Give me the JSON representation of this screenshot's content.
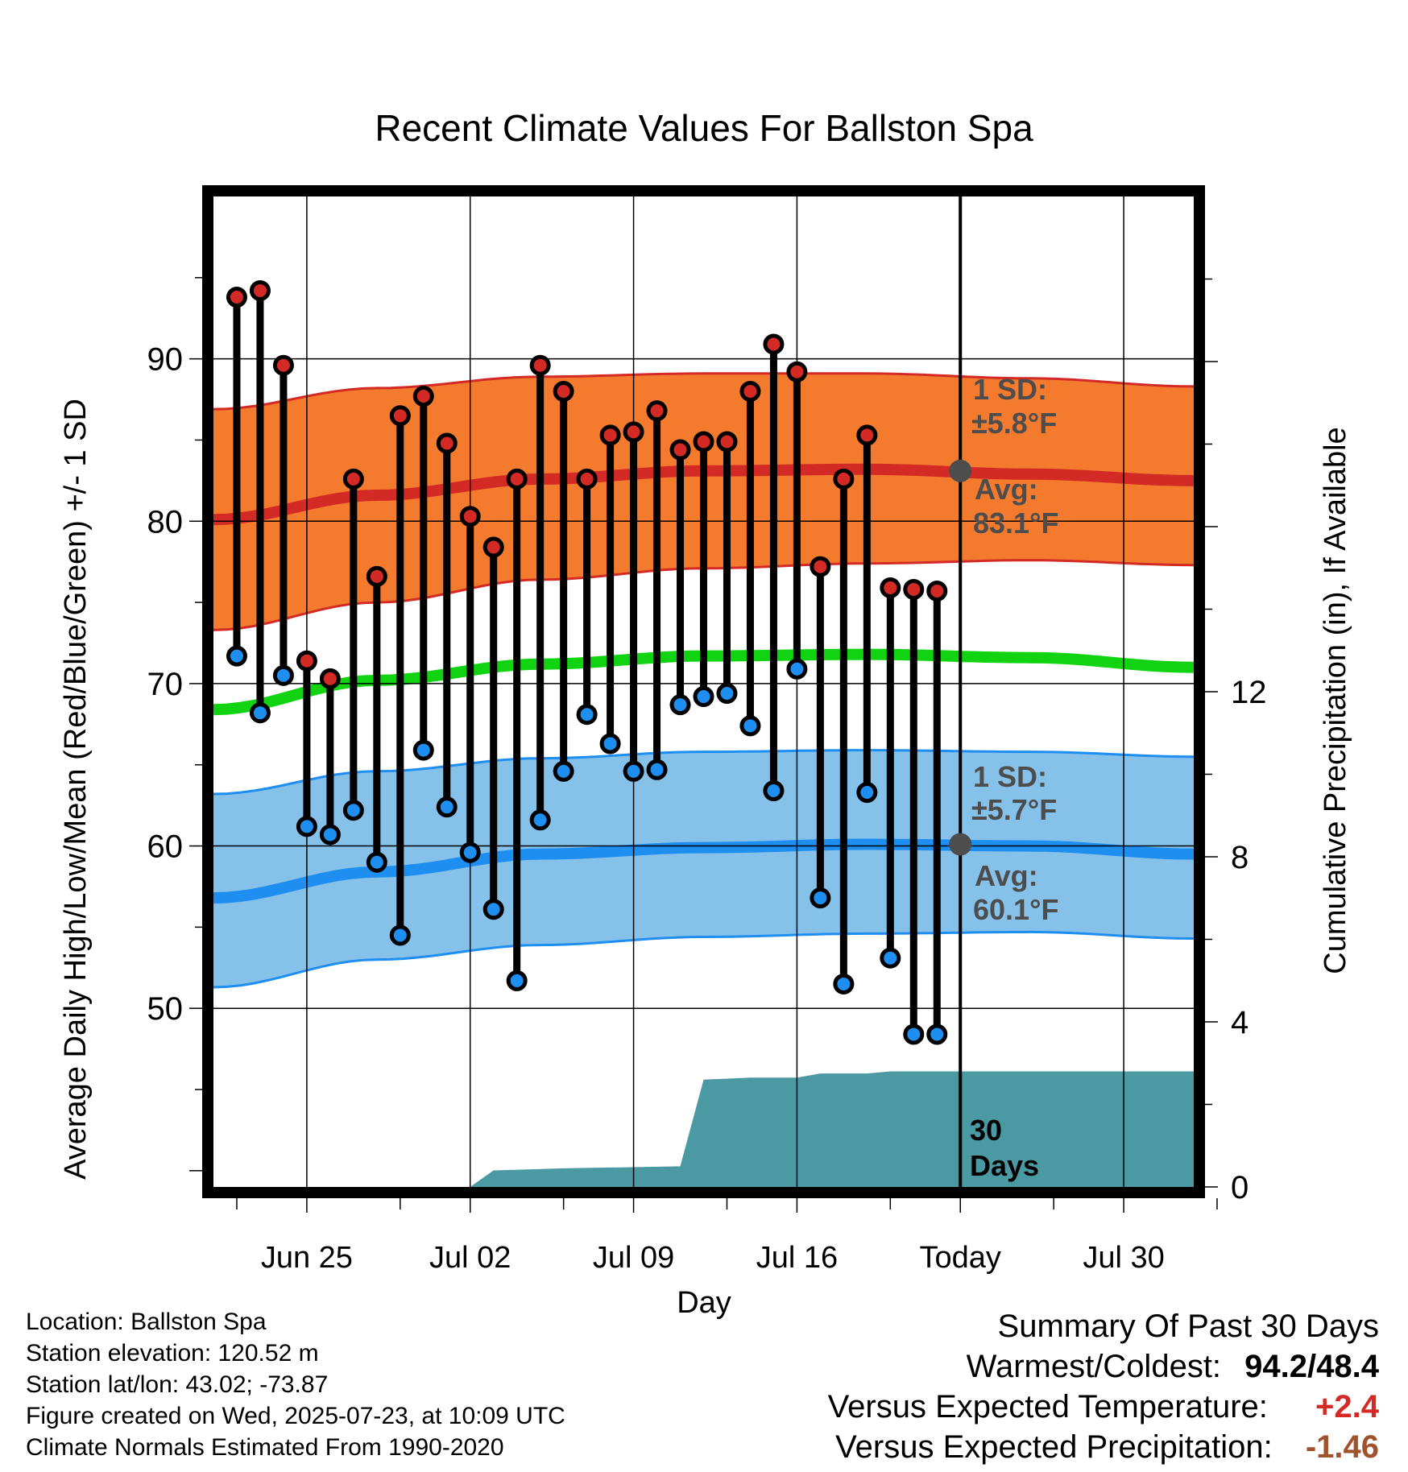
{
  "chart_data": {
    "type": "line",
    "title": "Recent Climate Values For Ballston Spa",
    "xlabel": "Day",
    "ylabel": "Average Daily High/Low/Mean (Red/Blue/Green) +/- 1 SD",
    "y2label": "Cumulative Precipitation (in), If Available",
    "ylim": [
      39,
      100
    ],
    "y2lim": [
      0,
      24
    ],
    "xlim": [
      "2025-06-21",
      "2025-08-02"
    ],
    "x_ticks": [
      {
        "date": "2025-06-25",
        "label": "Jun 25"
      },
      {
        "date": "2025-07-02",
        "label": "Jul 02"
      },
      {
        "date": "2025-07-09",
        "label": "Jul 09"
      },
      {
        "date": "2025-07-16",
        "label": "Jul 16"
      },
      {
        "date": "2025-07-23",
        "label": "Today"
      },
      {
        "date": "2025-07-30",
        "label": "Jul 30"
      }
    ],
    "y_ticks": [
      50,
      60,
      70,
      80,
      90
    ],
    "y2_ticks": [
      0,
      4,
      8,
      12
    ],
    "grid": true,
    "today": "2025-07-23",
    "days": [
      "2025-06-22",
      "2025-06-23",
      "2025-06-24",
      "2025-06-25",
      "2025-06-26",
      "2025-06-27",
      "2025-06-28",
      "2025-06-29",
      "2025-06-30",
      "2025-07-01",
      "2025-07-02",
      "2025-07-03",
      "2025-07-04",
      "2025-07-05",
      "2025-07-06",
      "2025-07-07",
      "2025-07-08",
      "2025-07-09",
      "2025-07-10",
      "2025-07-11",
      "2025-07-12",
      "2025-07-13",
      "2025-07-14",
      "2025-07-15",
      "2025-07-16",
      "2025-07-17",
      "2025-07-18",
      "2025-07-19",
      "2025-07-20",
      "2025-07-21",
      "2025-07-22"
    ],
    "highs": [
      93.8,
      94.2,
      89.6,
      71.4,
      70.3,
      82.6,
      76.6,
      86.5,
      87.7,
      84.8,
      80.3,
      78.4,
      82.6,
      89.6,
      88.0,
      82.6,
      85.3,
      85.5,
      86.8,
      84.4,
      84.9,
      84.9,
      88.0,
      90.9,
      89.2,
      77.2,
      82.6,
      85.3,
      75.9,
      75.8,
      75.7
    ],
    "lows": [
      71.7,
      68.2,
      70.5,
      61.2,
      60.7,
      62.2,
      59.0,
      54.5,
      65.9,
      62.4,
      59.6,
      56.1,
      51.7,
      61.6,
      64.6,
      68.1,
      66.3,
      64.6,
      64.7,
      68.7,
      69.2,
      69.4,
      67.4,
      63.4,
      70.9,
      56.8,
      51.5,
      63.3,
      53.1,
      48.4,
      48.4
    ],
    "normal_high": {
      "dates": [
        "2025-06-21",
        "2025-06-28",
        "2025-07-05",
        "2025-07-12",
        "2025-07-19",
        "2025-07-26",
        "2025-08-02"
      ],
      "avg": [
        80.1,
        81.6,
        82.6,
        83.1,
        83.2,
        82.9,
        82.5
      ],
      "upper": [
        86.9,
        88.2,
        88.9,
        89.1,
        89.1,
        88.8,
        88.3
      ],
      "lower": [
        73.3,
        75.0,
        76.4,
        77.1,
        77.4,
        77.6,
        77.3
      ]
    },
    "normal_mean": {
      "dates": [
        "2025-06-21",
        "2025-06-28",
        "2025-07-05",
        "2025-07-12",
        "2025-07-19",
        "2025-07-26",
        "2025-08-02"
      ],
      "values": [
        68.4,
        70.2,
        71.2,
        71.7,
        71.8,
        71.6,
        71.0
      ]
    },
    "normal_low": {
      "dates": [
        "2025-06-21",
        "2025-06-28",
        "2025-07-05",
        "2025-07-12",
        "2025-07-19",
        "2025-07-26",
        "2025-08-02"
      ],
      "avg": [
        56.8,
        58.4,
        59.5,
        59.9,
        60.1,
        60.0,
        59.5
      ],
      "upper": [
        63.2,
        64.6,
        65.4,
        65.8,
        65.9,
        65.8,
        65.5
      ],
      "lower": [
        51.3,
        53.0,
        53.9,
        54.4,
        54.6,
        54.7,
        54.3
      ]
    },
    "precip_cumulative": {
      "dates": [
        "2025-06-21",
        "2025-07-02",
        "2025-07-03",
        "2025-07-06",
        "2025-07-11",
        "2025-07-12",
        "2025-07-14",
        "2025-07-16",
        "2025-07-17",
        "2025-07-19",
        "2025-07-20",
        "2025-08-02"
      ],
      "values": [
        0,
        0,
        0.4,
        0.45,
        0.5,
        2.6,
        2.65,
        2.65,
        2.75,
        2.75,
        2.8,
        2.8
      ]
    },
    "annotations": {
      "high_sd_label": "1 SD:",
      "high_sd_value": "±5.8°F",
      "high_avg_label": "Avg:",
      "high_avg_value": "83.1°F",
      "low_sd_label": "1 SD:",
      "low_sd_value": "±5.7°F",
      "low_avg_label": "Avg:",
      "low_avg_value": "60.1°F",
      "period_number": "30",
      "period_unit": "Days"
    },
    "colors": {
      "high_band": "#f47a2e",
      "high_line": "#d42a26",
      "mean_line": "#12d312",
      "low_band": "#86c1ea",
      "low_line": "#1e8ef0",
      "precip": "#4b9aa3",
      "high_marker": "#d42a26",
      "low_marker": "#1e8ef0",
      "avg_dot": "#4d4d4d",
      "annotation_text": "#4d4d4d"
    }
  },
  "footer": {
    "location": "Location: Ballston Spa",
    "elevation": "Station elevation: 120.52 m",
    "latlon": "Station lat/lon: 43.02; -73.87",
    "created": "Figure created on Wed, 2025-07-23, at 10:09 UTC",
    "normals": "Climate Normals Estimated From 1990-2020"
  },
  "summary": {
    "heading": "Summary Of Past 30 Days",
    "warmest_label": "Warmest/Coldest:",
    "warmest_value": "94.2/48.4",
    "temp_label": "Versus Expected Temperature:",
    "temp_value": "+2.4",
    "temp_color": "#d42a26",
    "precip_label": "Versus Expected Precipitation:",
    "precip_value": "-1.46",
    "precip_color": "#a0522d"
  }
}
